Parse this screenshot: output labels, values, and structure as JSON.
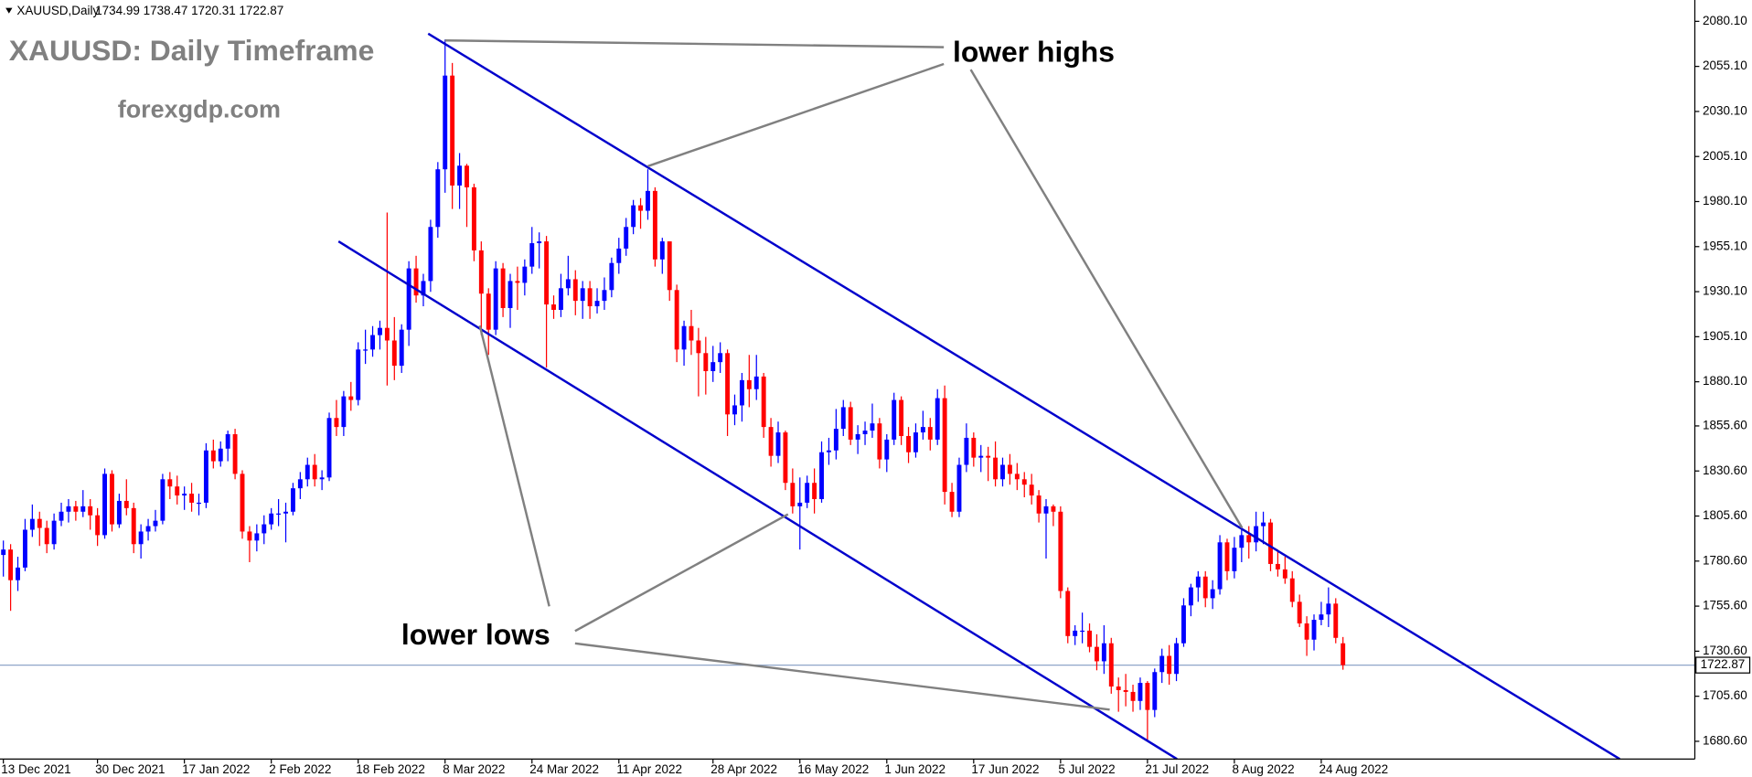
{
  "chart_data": {
    "type": "candlestick",
    "symbol": "XAUUSD,Daily",
    "info": "1734.99 1738.47 1720.31 1722.87",
    "title": "XAUUSD: Daily Timeframe",
    "subtitle": "forexgdp.com",
    "annotations": [
      "lower highs",
      "lower lows"
    ],
    "up_color": "#0000ff",
    "down_color": "#ff0000",
    "ylim": [
      1670.76,
      2091.94
    ],
    "yticks": [
      {
        "value": 1680.6,
        "label": "1680.60"
      },
      {
        "value": 1705.6,
        "label": "1705.60"
      },
      {
        "value": 1730.6,
        "label": "1730.60"
      },
      {
        "value": 1755.6,
        "label": "1755.60"
      },
      {
        "value": 1780.6,
        "label": "1780.60"
      },
      {
        "value": 1805.6,
        "label": "1805.60"
      },
      {
        "value": 1830.6,
        "label": "1830.60"
      },
      {
        "value": 1855.6,
        "label": "1855.60"
      },
      {
        "value": 1880.1,
        "label": "1880.10"
      },
      {
        "value": 1905.1,
        "label": "1905.10"
      },
      {
        "value": 1930.1,
        "label": "1930.10"
      },
      {
        "value": 1955.1,
        "label": "1955.10"
      },
      {
        "value": 1980.1,
        "label": "1980.10"
      },
      {
        "value": 2005.1,
        "label": "2005.10"
      },
      {
        "value": 2030.1,
        "label": "2030.10"
      },
      {
        "value": 2055.1,
        "label": "2055.10"
      },
      {
        "value": 2080.1,
        "label": "2080.10"
      }
    ],
    "last_price": {
      "value": 1722.87,
      "label": "1722.87"
    },
    "categories": [
      "13 Dec 2021",
      null,
      null,
      null,
      null,
      null,
      null,
      null,
      null,
      null,
      null,
      null,
      null,
      "30 Dec 2021",
      null,
      null,
      null,
      null,
      null,
      null,
      null,
      null,
      null,
      null,
      null,
      "17 Jan 2022",
      null,
      null,
      null,
      null,
      null,
      null,
      null,
      null,
      null,
      null,
      null,
      "2 Feb 2022",
      null,
      null,
      null,
      null,
      null,
      null,
      null,
      null,
      null,
      null,
      null,
      "18 Feb 2022",
      null,
      null,
      null,
      null,
      null,
      null,
      null,
      null,
      null,
      null,
      null,
      "8 Mar 2022",
      null,
      null,
      null,
      null,
      null,
      null,
      null,
      null,
      null,
      null,
      null,
      "24 Mar 2022",
      null,
      null,
      null,
      null,
      null,
      null,
      null,
      null,
      null,
      null,
      null,
      "11 Apr 2022",
      null,
      null,
      null,
      null,
      null,
      null,
      null,
      null,
      null,
      null,
      null,
      null,
      "28 Apr 2022",
      null,
      null,
      null,
      null,
      null,
      null,
      null,
      null,
      null,
      null,
      null,
      "16 May 2022",
      null,
      null,
      null,
      null,
      null,
      null,
      null,
      null,
      null,
      null,
      null,
      "1 Jun 2022",
      null,
      null,
      null,
      null,
      null,
      null,
      null,
      null,
      null,
      null,
      null,
      "17 Jun 2022",
      null,
      null,
      null,
      null,
      null,
      null,
      null,
      null,
      null,
      null,
      null,
      "5 Jul 2022",
      null,
      null,
      null,
      null,
      null,
      null,
      null,
      null,
      null,
      null,
      null,
      "21 Jul 2022",
      null,
      null,
      null,
      null,
      null,
      null,
      null,
      null,
      null,
      null,
      null,
      "8 Aug 2022",
      null,
      null,
      null,
      null,
      null,
      null,
      null,
      null,
      null,
      null,
      null,
      "24 Aug 2022",
      null,
      null,
      null
    ],
    "open": [
      1784,
      1787,
      1770,
      1777,
      1798,
      1804,
      1799,
      1790,
      1803,
      1808,
      1811,
      1808,
      1811,
      1806,
      1795,
      1829,
      1801,
      1814,
      1810,
      1790,
      1797,
      1800,
      1803,
      1826,
      1822,
      1817,
      1818,
      1813,
      1813,
      1842,
      1836,
      1843,
      1851,
      1829,
      1797,
      1792,
      1796,
      1801,
      1807,
      1807,
      1808,
      1821,
      1826,
      1834,
      1826,
      1827,
      1860,
      1855,
      1872,
      1870,
      1898,
      1898,
      1906,
      1910,
      1903,
      1889,
      1909,
      1943,
      1928,
      1936,
      1966,
      1998,
      2050,
      1989,
      2000,
      1988,
      1953,
      1929,
      1909,
      1943,
      1921,
      1936,
      1935,
      1944,
      1957,
      1958,
      1923,
      1920,
      1932,
      1937,
      1925,
      1932,
      1922,
      1925,
      1931,
      1946,
      1954,
      1966,
      1978,
      1975,
      1986,
      1948,
      1958,
      1931,
      1898,
      1911,
      1903,
      1896,
      1886,
      1891,
      1896,
      1862,
      1867,
      1881,
      1876,
      1883,
      1855,
      1839,
      1852,
      1824,
      1811,
      1813,
      1824,
      1815,
      1841,
      1842,
      1854,
      1866,
      1848,
      1851,
      1853,
      1857,
      1837,
      1848,
      1870,
      1850,
      1841,
      1852,
      1855,
      1848,
      1871,
      1819,
      1808,
      1834,
      1849,
      1838,
      1839,
      1838,
      1826,
      1834,
      1829,
      1826,
      1823,
      1817,
      1807,
      1811,
      1808,
      1764,
      1739,
      1742,
      1742,
      1733,
      1725,
      1735,
      1711,
      1709,
      1708,
      1703,
      1713,
      1698,
      1719,
      1728,
      1718,
      1735,
      1756,
      1766,
      1772,
      1760,
      1765,
      1791,
      1775,
      1788,
      1795,
      1791,
      1800,
      1802,
      1779,
      1776,
      1771,
      1758,
      1746,
      1737,
      1748,
      1751,
      1757,
      1734.99
    ],
    "high": [
      1792,
      1790,
      1783,
      1804,
      1812,
      1808,
      1803,
      1807,
      1813,
      1815,
      1814,
      1820,
      1815,
      1810,
      1832,
      1831,
      1818,
      1826,
      1813,
      1801,
      1804,
      1809,
      1829,
      1830,
      1828,
      1822,
      1824,
      1818,
      1846,
      1848,
      1847,
      1853,
      1854,
      1831,
      1800,
      1801,
      1806,
      1810,
      1815,
      1813,
      1824,
      1830,
      1838,
      1840,
      1831,
      1863,
      1870,
      1875,
      1880,
      1902,
      1909,
      1911,
      1914,
      1974,
      1916,
      1912,
      1947,
      1950,
      1940,
      1970,
      2002,
      2070,
      2057,
      2007,
      2001,
      1990,
      1958,
      1932,
      1947,
      1946,
      1940,
      1944,
      1948,
      1966,
      1963,
      1961,
      1928,
      1940,
      1950,
      1942,
      1936,
      1936,
      1932,
      1938,
      1949,
      1960,
      1971,
      1981,
      1982,
      1998,
      1988,
      1960,
      1958,
      1934,
      1914,
      1920,
      1910,
      1905,
      1900,
      1902,
      1898,
      1873,
      1885,
      1895,
      1895,
      1885,
      1860,
      1858,
      1853,
      1832,
      1827,
      1828,
      1832,
      1847,
      1849,
      1865,
      1870,
      1869,
      1856,
      1858,
      1868,
      1860,
      1851,
      1874,
      1872,
      1855,
      1857,
      1864,
      1860,
      1876,
      1878,
      1824,
      1838,
      1857,
      1852,
      1845,
      1844,
      1847,
      1838,
      1840,
      1835,
      1830,
      1829,
      1820,
      1815,
      1812,
      1811,
      1766,
      1745,
      1752,
      1746,
      1740,
      1745,
      1738,
      1716,
      1718,
      1712,
      1716,
      1714,
      1721,
      1732,
      1734,
      1738,
      1760,
      1768,
      1775,
      1775,
      1770,
      1795,
      1793,
      1794,
      1800,
      1800,
      1808,
      1808,
      1804,
      1787,
      1783,
      1775,
      1762,
      1750,
      1751,
      1758,
      1766,
      1760,
      1738.47
    ],
    "low": [
      1772,
      1753,
      1764,
      1775,
      1794,
      1789,
      1785,
      1787,
      1800,
      1802,
      1803,
      1805,
      1798,
      1789,
      1793,
      1797,
      1799,
      1806,
      1785,
      1782,
      1792,
      1797,
      1801,
      1815,
      1812,
      1809,
      1808,
      1806,
      1810,
      1832,
      1833,
      1836,
      1826,
      1793,
      1780,
      1786,
      1790,
      1798,
      1800,
      1791,
      1806,
      1815,
      1822,
      1822,
      1820,
      1825,
      1850,
      1850,
      1864,
      1867,
      1890,
      1894,
      1898,
      1878,
      1881,
      1885,
      1900,
      1924,
      1922,
      1930,
      1960,
      1985,
      1976,
      1976,
      1966,
      1947,
      1906,
      1895,
      1906,
      1916,
      1910,
      1920,
      1928,
      1940,
      1943,
      1888,
      1915,
      1916,
      1928,
      1917,
      1915,
      1915,
      1918,
      1920,
      1927,
      1940,
      1950,
      1962,
      1965,
      1970,
      1944,
      1940,
      1925,
      1891,
      1889,
      1895,
      1872,
      1873,
      1880,
      1885,
      1850,
      1856,
      1858,
      1866,
      1870,
      1849,
      1833,
      1835,
      1820,
      1807,
      1787,
      1810,
      1807,
      1813,
      1834,
      1837,
      1850,
      1845,
      1840,
      1845,
      1849,
      1832,
      1830,
      1845,
      1845,
      1835,
      1838,
      1848,
      1842,
      1845,
      1812,
      1805,
      1805,
      1830,
      1833,
      1830,
      1825,
      1822,
      1822,
      1823,
      1820,
      1816,
      1812,
      1802,
      1782,
      1800,
      1760,
      1735,
      1734,
      1735,
      1730,
      1720,
      1718,
      1707,
      1697,
      1700,
      1697,
      1698,
      1681,
      1694,
      1713,
      1712,
      1714,
      1733,
      1750,
      1758,
      1755,
      1754,
      1762,
      1770,
      1771,
      1780,
      1782,
      1786,
      1790,
      1775,
      1772,
      1768,
      1755,
      1744,
      1728,
      1731,
      1745,
      1744,
      1735,
      1720.31
    ],
    "close": [
      1787,
      1770,
      1777,
      1798,
      1804,
      1799,
      1790,
      1803,
      1808,
      1811,
      1808,
      1811,
      1806,
      1795,
      1829,
      1801,
      1814,
      1810,
      1790,
      1797,
      1800,
      1803,
      1826,
      1822,
      1817,
      1818,
      1813,
      1813,
      1842,
      1836,
      1843,
      1851,
      1829,
      1797,
      1792,
      1796,
      1801,
      1807,
      1807,
      1808,
      1821,
      1826,
      1834,
      1826,
      1827,
      1860,
      1855,
      1872,
      1870,
      1898,
      1898,
      1906,
      1910,
      1903,
      1889,
      1909,
      1943,
      1928,
      1936,
      1966,
      1998,
      2050,
      1989,
      2000,
      1988,
      1953,
      1929,
      1909,
      1943,
      1921,
      1936,
      1935,
      1944,
      1957,
      1958,
      1923,
      1920,
      1932,
      1937,
      1925,
      1932,
      1922,
      1925,
      1931,
      1946,
      1954,
      1966,
      1978,
      1975,
      1986,
      1948,
      1958,
      1931,
      1898,
      1911,
      1903,
      1896,
      1886,
      1891,
      1896,
      1862,
      1867,
      1881,
      1876,
      1883,
      1855,
      1839,
      1852,
      1824,
      1811,
      1813,
      1824,
      1815,
      1841,
      1842,
      1854,
      1866,
      1848,
      1851,
      1853,
      1857,
      1837,
      1848,
      1870,
      1850,
      1841,
      1852,
      1855,
      1848,
      1871,
      1819,
      1808,
      1834,
      1849,
      1838,
      1839,
      1838,
      1826,
      1834,
      1829,
      1826,
      1823,
      1817,
      1807,
      1811,
      1808,
      1764,
      1739,
      1742,
      1742,
      1733,
      1725,
      1735,
      1711,
      1709,
      1708,
      1703,
      1713,
      1698,
      1719,
      1728,
      1718,
      1735,
      1756,
      1766,
      1772,
      1760,
      1765,
      1791,
      1775,
      1788,
      1795,
      1791,
      1800,
      1802,
      1779,
      1776,
      1771,
      1758,
      1746,
      1737,
      1748,
      1751,
      1757,
      1738,
      1722.87
    ]
  }
}
